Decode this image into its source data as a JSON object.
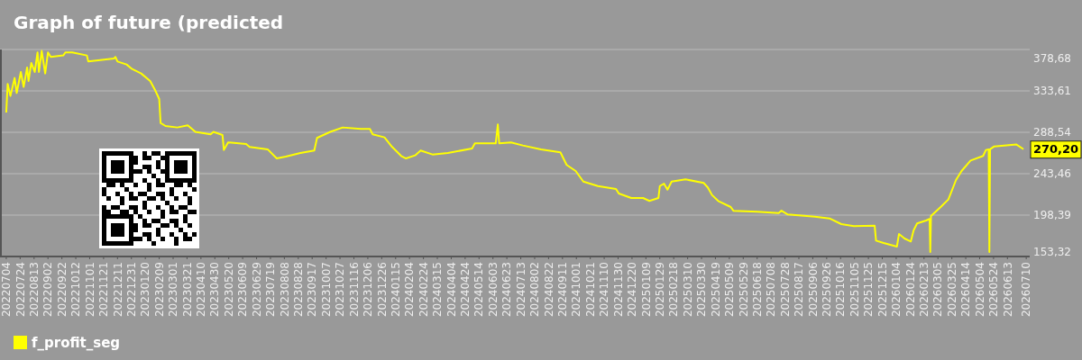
{
  "chart_data": {
    "type": "line",
    "title": "Graph of future (predicted",
    "xlim": [
      "2022-06-25",
      "2026-07-15"
    ],
    "ylim": [
      153.32,
      378.68
    ],
    "yticks": [
      {
        "value": 153.32,
        "label": "153,32"
      },
      {
        "value": 198.39,
        "label": "198,39"
      },
      {
        "value": 243.46,
        "label": "243,46"
      },
      {
        "value": 288.54,
        "label": "288,54"
      },
      {
        "value": 333.61,
        "label": "333,61"
      },
      {
        "value": 378.68,
        "label": "378,68"
      }
    ],
    "xticks": [
      {
        "value": "2022-07-04",
        "label": "20220704"
      },
      {
        "value": "2022-07-24",
        "label": "20220724"
      },
      {
        "value": "2022-08-13",
        "label": "20220813"
      },
      {
        "value": "2022-09-02",
        "label": "20220902"
      },
      {
        "value": "2022-09-22",
        "label": "20220922"
      },
      {
        "value": "2022-10-12",
        "label": "20221012"
      },
      {
        "value": "2022-11-01",
        "label": "20221101"
      },
      {
        "value": "2022-11-21",
        "label": "20221121"
      },
      {
        "value": "2022-12-11",
        "label": "20221211"
      },
      {
        "value": "2022-12-31",
        "label": "20221231"
      },
      {
        "value": "2023-01-20",
        "label": "20230120"
      },
      {
        "value": "2023-02-09",
        "label": "20230209"
      },
      {
        "value": "2023-03-01",
        "label": "20230301"
      },
      {
        "value": "2023-03-21",
        "label": "20230321"
      },
      {
        "value": "2023-04-10",
        "label": "20230410"
      },
      {
        "value": "2023-04-30",
        "label": "20230430"
      },
      {
        "value": "2023-05-20",
        "label": "20230520"
      },
      {
        "value": "2023-06-09",
        "label": "20230609"
      },
      {
        "value": "2023-06-29",
        "label": "20230629"
      },
      {
        "value": "2023-07-19",
        "label": "20230719"
      },
      {
        "value": "2023-08-08",
        "label": "20230808"
      },
      {
        "value": "2023-08-28",
        "label": "20230828"
      },
      {
        "value": "2023-09-17",
        "label": "20230917"
      },
      {
        "value": "2023-10-07",
        "label": "20231007"
      },
      {
        "value": "2023-10-27",
        "label": "20231027"
      },
      {
        "value": "2023-11-16",
        "label": "20231116"
      },
      {
        "value": "2023-12-06",
        "label": "20231206"
      },
      {
        "value": "2023-12-26",
        "label": "20231226"
      },
      {
        "value": "2024-01-15",
        "label": "20240115"
      },
      {
        "value": "2024-02-04",
        "label": "20240204"
      },
      {
        "value": "2024-02-24",
        "label": "20240224"
      },
      {
        "value": "2024-03-15",
        "label": "20240315"
      },
      {
        "value": "2024-04-04",
        "label": "20240404"
      },
      {
        "value": "2024-04-24",
        "label": "20240424"
      },
      {
        "value": "2024-05-14",
        "label": "20240514"
      },
      {
        "value": "2024-06-03",
        "label": "20240603"
      },
      {
        "value": "2024-06-23",
        "label": "20240623"
      },
      {
        "value": "2024-07-13",
        "label": "20240713"
      },
      {
        "value": "2024-08-02",
        "label": "20240802"
      },
      {
        "value": "2024-08-22",
        "label": "20240822"
      },
      {
        "value": "2024-09-11",
        "label": "20240911"
      },
      {
        "value": "2024-10-01",
        "label": "20241001"
      },
      {
        "value": "2024-10-21",
        "label": "20241021"
      },
      {
        "value": "2024-11-10",
        "label": "20241110"
      },
      {
        "value": "2024-11-30",
        "label": "20241130"
      },
      {
        "value": "2024-12-20",
        "label": "20241220"
      },
      {
        "value": "2025-01-09",
        "label": "20250109"
      },
      {
        "value": "2025-01-29",
        "label": "20250129"
      },
      {
        "value": "2025-02-18",
        "label": "20250218"
      },
      {
        "value": "2025-03-10",
        "label": "20250310"
      },
      {
        "value": "2025-03-30",
        "label": "20250330"
      },
      {
        "value": "2025-04-19",
        "label": "20250419"
      },
      {
        "value": "2025-05-09",
        "label": "20250509"
      },
      {
        "value": "2025-05-29",
        "label": "20250529"
      },
      {
        "value": "2025-06-18",
        "label": "20250618"
      },
      {
        "value": "2025-07-08",
        "label": "20250708"
      },
      {
        "value": "2025-07-28",
        "label": "20250728"
      },
      {
        "value": "2025-08-17",
        "label": "20250817"
      },
      {
        "value": "2025-09-06",
        "label": "20250906"
      },
      {
        "value": "2025-09-26",
        "label": "20250926"
      },
      {
        "value": "2025-10-16",
        "label": "20251016"
      },
      {
        "value": "2025-11-05",
        "label": "20251105"
      },
      {
        "value": "2025-11-25",
        "label": "20251125"
      },
      {
        "value": "2025-12-15",
        "label": "20251215"
      },
      {
        "value": "2026-01-04",
        "label": "20260104"
      },
      {
        "value": "2026-01-24",
        "label": "20260124"
      },
      {
        "value": "2026-02-13",
        "label": "20260213"
      },
      {
        "value": "2026-03-05",
        "label": "20260305"
      },
      {
        "value": "2026-03-25",
        "label": "20260325"
      },
      {
        "value": "2026-04-14",
        "label": "20260414"
      },
      {
        "value": "2026-05-04",
        "label": "20260504"
      },
      {
        "value": "2026-05-24",
        "label": "20260524"
      },
      {
        "value": "2026-06-13",
        "label": "20260613"
      },
      {
        "value": "2026-07-10",
        "label": "20260710"
      }
    ],
    "grid": "y",
    "legend": "bottom",
    "annotations": [
      "270,20"
    ],
    "series": [
      {
        "name": "f_profit_seg",
        "color": "#ffff00",
        "x": [
          "2022-07-04",
          "2022-07-06",
          "2022-07-10",
          "2022-07-16",
          "2022-07-19",
          "2022-07-25",
          "2022-07-29",
          "2022-08-03",
          "2022-08-05",
          "2022-08-09",
          "2022-08-14",
          "2022-08-18",
          "2022-08-20",
          "2022-08-24",
          "2022-08-29",
          "2022-09-02",
          "2022-09-06",
          "2022-09-24",
          "2022-09-27",
          "2022-10-07",
          "2022-10-28",
          "2022-10-30",
          "2022-12-06",
          "2022-12-08",
          "2022-12-11",
          "2022-12-24",
          "2023-01-01",
          "2023-01-14",
          "2023-01-27",
          "2023-02-03",
          "2023-02-09",
          "2023-02-11",
          "2023-02-18",
          "2023-03-07",
          "2023-03-22",
          "2023-04-02",
          "2023-04-24",
          "2023-04-28",
          "2023-05-11",
          "2023-05-13",
          "2023-05-19",
          "2023-06-14",
          "2023-06-19",
          "2023-07-15",
          "2023-07-28",
          "2023-08-10",
          "2023-08-31",
          "2023-09-20",
          "2023-09-24",
          "2023-10-13",
          "2023-10-31",
          "2023-11-26",
          "2023-12-09",
          "2023-12-13",
          "2023-12-30",
          "2024-01-10",
          "2024-01-23",
          "2024-01-30",
          "2024-02-12",
          "2024-02-20",
          "2024-03-08",
          "2024-03-30",
          "2024-05-04",
          "2024-05-08",
          "2024-06-07",
          "2024-06-10",
          "2024-06-12",
          "2024-06-29",
          "2024-07-16",
          "2024-08-11",
          "2024-09-08",
          "2024-09-17",
          "2024-09-30",
          "2024-10-11",
          "2024-11-01",
          "2024-11-27",
          "2024-12-01",
          "2024-12-19",
          "2025-01-05",
          "2025-01-14",
          "2025-01-27",
          "2025-01-29",
          "2025-02-04",
          "2025-02-09",
          "2025-02-15",
          "2025-03-07",
          "2025-04-02",
          "2025-04-08",
          "2025-04-14",
          "2025-04-23",
          "2025-05-11",
          "2025-05-15",
          "2025-06-18",
          "2025-07-19",
          "2025-07-23",
          "2025-08-01",
          "2025-09-09",
          "2025-09-30",
          "2025-10-17",
          "2025-11-04",
          "2025-12-04",
          "2025-12-06",
          "2025-12-17",
          "2026-01-05",
          "2026-01-08",
          "2026-01-16",
          "2026-01-25",
          "2026-01-29",
          "2026-02-03",
          "2026-02-16",
          "2026-02-21",
          "2026-02-22",
          "2026-02-23",
          "2026-03-09",
          "2026-03-20",
          "2026-03-31",
          "2026-04-08",
          "2026-04-21",
          "2026-05-09",
          "2026-05-13",
          "2026-05-17",
          "2026-05-18",
          "2026-05-19",
          "2026-05-25",
          "2026-06-26",
          "2026-07-06"
        ],
        "values": [
          310.1,
          341.2,
          328.1,
          347.7,
          331.4,
          354.2,
          337.9,
          359.1,
          344.4,
          364.0,
          354.2,
          375.5,
          354.2,
          377.1,
          352.6,
          375.5,
          370.6,
          372.2,
          375.5,
          375.5,
          372.2,
          365.6,
          368.9,
          370.6,
          365.6,
          362.4,
          357.4,
          352.6,
          344.4,
          334.6,
          324.8,
          298.7,
          295.4,
          293.8,
          296.1,
          289.0,
          286.3,
          289.0,
          285.6,
          269.3,
          277.5,
          275.8,
          272.6,
          270.0,
          260.1,
          262.1,
          266.0,
          268.7,
          282.4,
          289.0,
          293.8,
          292.2,
          292.2,
          286.3,
          283.0,
          272.6,
          262.8,
          260.1,
          263.4,
          268.7,
          264.4,
          266.0,
          270.9,
          276.5,
          276.5,
          297.1,
          276.5,
          277.5,
          274.2,
          270.0,
          266.7,
          253.0,
          246.4,
          234.9,
          230.0,
          226.8,
          221.9,
          217.0,
          217.0,
          213.8,
          217.0,
          230.0,
          232.7,
          226.1,
          234.9,
          237.3,
          233.4,
          228.5,
          220.3,
          213.8,
          207.2,
          203.0,
          202.0,
          200.6,
          203.2,
          199.1,
          196.7,
          194.8,
          188.6,
          186.3,
          186.9,
          170.6,
          168.0,
          164.1,
          177.8,
          172.9,
          169.7,
          181.7,
          189.3,
          192.5,
          194.2,
          158.2,
          197.4,
          207.2,
          215.4,
          236.6,
          246.4,
          257.8,
          262.8,
          269.3,
          270.0,
          158.2,
          270.0,
          273.2,
          275.2,
          270.2
        ]
      }
    ]
  }
}
